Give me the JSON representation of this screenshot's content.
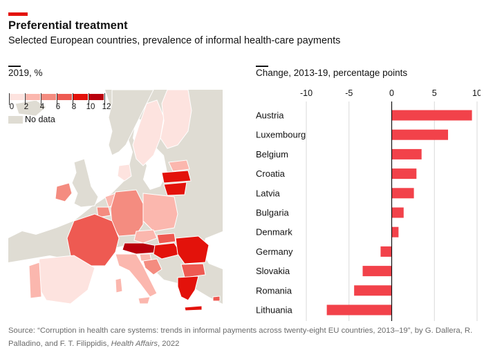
{
  "header": {
    "title": "Preferential treatment",
    "subtitle": "Selected European countries, prevalence of informal health-care payments"
  },
  "map": {
    "label": "2019, %",
    "legend": {
      "ticks": [
        "0",
        "2",
        "4",
        "6",
        "8",
        "10",
        "12"
      ],
      "colors": [
        "#fde3df",
        "#fbb7ae",
        "#f48c80",
        "#ee5a52",
        "#e3120b",
        "#b9000d"
      ],
      "no_data_label": "No data",
      "no_data_color": "#dfdcd3"
    },
    "colors": {
      "sea": "#ffffff",
      "non_eu": "#dfdcd3",
      "border": "#ffffff"
    }
  },
  "chart_data": {
    "type": "bar",
    "orientation": "horizontal",
    "title": "Change, 2013-19, percentage points",
    "categories": [
      "Austria",
      "Luxembourg",
      "Belgium",
      "Croatia",
      "Latvia",
      "Bulgaria",
      "Denmark",
      "Germany",
      "Slovakia",
      "Romania",
      "Lithuania"
    ],
    "values": [
      9.4,
      6.6,
      3.5,
      2.9,
      2.6,
      1.4,
      0.8,
      -1.3,
      -3.4,
      -4.4,
      -7.6
    ],
    "xlim": [
      -10,
      10
    ],
    "xticks": [
      -10,
      -5,
      0,
      5,
      10
    ],
    "xtick_labels": [
      "-10",
      "-5",
      "0",
      "5",
      "10"
    ],
    "bar_color": "#f2424a",
    "grid": true
  },
  "footer": {
    "source_prefix": "Source: “Corruption in health care systems: trends in informal payments across twenty-eight EU countries, 2013–19”, by G. Dallera, R. Palladino, and F. T. Filippidis, ",
    "source_journal": "Health Affairs",
    "source_suffix": ", 2022"
  }
}
